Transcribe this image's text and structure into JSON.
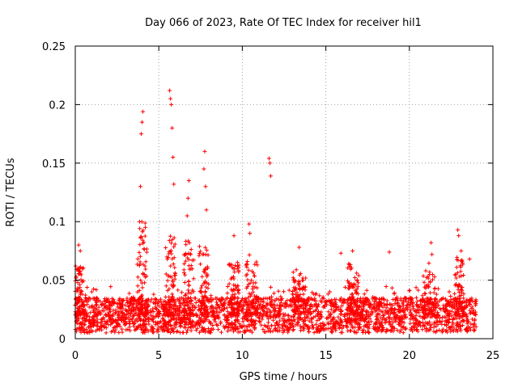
{
  "chart_data": {
    "type": "scatter",
    "title": "Day 066 of 2023, Rate Of TEC Index for receiver hil1",
    "xlabel": "GPS time / hours",
    "ylabel": "ROTI / TECUs",
    "xlim": [
      0,
      25
    ],
    "ylim": [
      0,
      0.25
    ],
    "x_ticks": [
      0,
      5,
      10,
      15,
      20,
      25
    ],
    "y_ticks": [
      0,
      0.05,
      0.1,
      0.15,
      0.2,
      0.25
    ],
    "x_tick_labels": [
      "0",
      "5",
      "10",
      "15",
      "20",
      "25"
    ],
    "y_tick_labels": [
      "0",
      "0.05",
      "0.1",
      "0.15",
      "0.2",
      "0.25"
    ],
    "grid": true,
    "marker": "+",
    "series_color": "#ff0000",
    "data_extent_hours": [
      0,
      24
    ],
    "baseline_band": [
      0.005,
      0.035
    ],
    "peak_points": [
      [
        0.2,
        0.08
      ],
      [
        0.3,
        0.075
      ],
      [
        3.9,
        0.13
      ],
      [
        3.95,
        0.175
      ],
      [
        4.0,
        0.185
      ],
      [
        4.05,
        0.194
      ],
      [
        3.85,
        0.1
      ],
      [
        5.65,
        0.212
      ],
      [
        5.7,
        0.205
      ],
      [
        5.75,
        0.2
      ],
      [
        5.8,
        0.18
      ],
      [
        5.85,
        0.155
      ],
      [
        5.9,
        0.132
      ],
      [
        6.8,
        0.135
      ],
      [
        6.75,
        0.12
      ],
      [
        6.7,
        0.105
      ],
      [
        7.7,
        0.145
      ],
      [
        7.75,
        0.16
      ],
      [
        7.8,
        0.13
      ],
      [
        7.85,
        0.11
      ],
      [
        9.5,
        0.088
      ],
      [
        10.4,
        0.098
      ],
      [
        10.45,
        0.09
      ],
      [
        11.6,
        0.154
      ],
      [
        11.65,
        0.15
      ],
      [
        11.7,
        0.139
      ],
      [
        13.4,
        0.078
      ],
      [
        15.9,
        0.073
      ],
      [
        16.6,
        0.075
      ],
      [
        18.8,
        0.074
      ],
      [
        21.3,
        0.082
      ],
      [
        21.35,
        0.072
      ],
      [
        22.9,
        0.093
      ],
      [
        22.95,
        0.088
      ],
      [
        23.1,
        0.075
      ],
      [
        23.6,
        0.068
      ]
    ],
    "activity_regions": [
      {
        "start": 3.7,
        "end": 4.3,
        "max": 0.1
      },
      {
        "start": 5.4,
        "end": 6.0,
        "max": 0.09
      },
      {
        "start": 6.5,
        "end": 7.1,
        "max": 0.085
      },
      {
        "start": 7.4,
        "end": 8.0,
        "max": 0.08
      },
      {
        "start": 9.2,
        "end": 9.8,
        "max": 0.07
      },
      {
        "start": 10.2,
        "end": 10.9,
        "max": 0.075
      },
      {
        "start": 13.0,
        "end": 13.8,
        "max": 0.06
      },
      {
        "start": 16.3,
        "end": 17.0,
        "max": 0.065
      },
      {
        "start": 20.8,
        "end": 21.6,
        "max": 0.065
      },
      {
        "start": 22.7,
        "end": 23.3,
        "max": 0.07
      },
      {
        "start": 0.0,
        "end": 0.5,
        "max": 0.065
      }
    ]
  }
}
